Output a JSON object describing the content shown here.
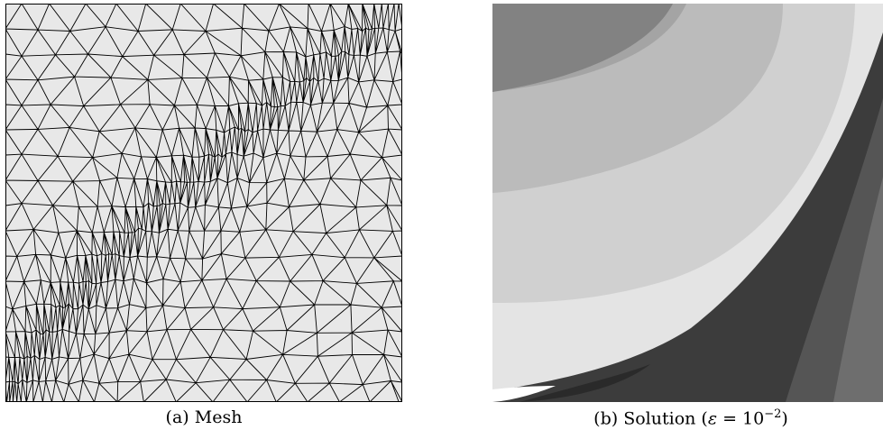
{
  "figures": [
    {
      "id": "a",
      "label": "(a)",
      "caption": "Mesh"
    },
    {
      "id": "b",
      "label": "(b)",
      "caption": "Solution",
      "caption_math_lhs": "ε",
      "caption_math_eq": " = 10",
      "caption_math_exp": "−2"
    }
  ],
  "colors": {
    "mesh_fill": "#e8e8e8",
    "mesh_line": "#000000",
    "solution_bands": [
      "#828282",
      "#a4a4a4",
      "#bbbbbb",
      "#d0d0d0",
      "#e4e4e4",
      "#3c3c3c",
      "#555555",
      "#6e6e6e"
    ]
  }
}
